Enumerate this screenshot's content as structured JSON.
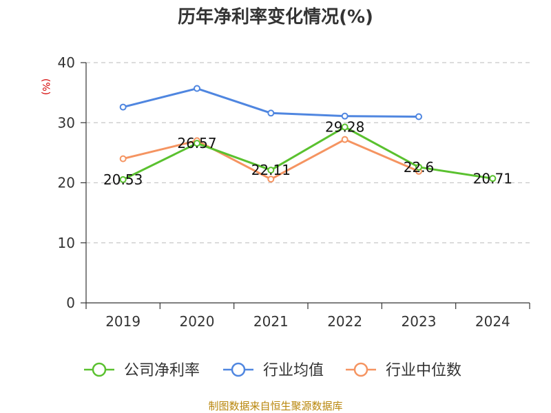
{
  "chart_data": {
    "type": "line",
    "title": "历年净利率变化情况(%)",
    "ylabel": "(%)",
    "xlabel": "",
    "categories": [
      "2019",
      "2020",
      "2021",
      "2022",
      "2023",
      "2024"
    ],
    "ylim": [
      0,
      40
    ],
    "yticks": [
      0,
      10,
      20,
      30,
      40
    ],
    "grid": true,
    "legend_position": "bottom",
    "series": [
      {
        "name": "公司净利率",
        "color": "#5ac12f",
        "values": [
          20.53,
          26.57,
          22.11,
          29.28,
          22.6,
          20.71
        ],
        "labels": [
          "20.53",
          "26.57",
          "22.11",
          "29.28",
          "22.6",
          "20.71"
        ]
      },
      {
        "name": "行业均值",
        "color": "#4f86e0",
        "values": [
          32.6,
          35.7,
          31.6,
          31.1,
          31.0,
          null
        ]
      },
      {
        "name": "行业中位数",
        "color": "#f59461",
        "values": [
          24.0,
          27.0,
          20.6,
          27.2,
          21.9,
          null
        ]
      }
    ],
    "source": "制图数据来自恒生聚源数据库"
  }
}
